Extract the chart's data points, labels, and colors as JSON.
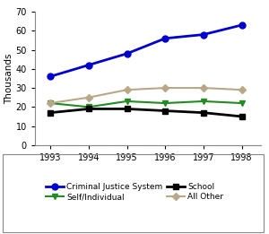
{
  "years": [
    1993,
    1994,
    1995,
    1996,
    1997,
    1998
  ],
  "series_order": [
    "Criminal Justice System",
    "Self/Individual",
    "School",
    "All Other"
  ],
  "series": {
    "Criminal Justice System": {
      "values": [
        36,
        42,
        48,
        56,
        58,
        63
      ],
      "color": "#0000CC",
      "marker": "o",
      "markersize": 5,
      "linewidth": 2
    },
    "Self/Individual": {
      "values": [
        22,
        20,
        23,
        22,
        23,
        22
      ],
      "color": "#228B22",
      "marker": "v",
      "markersize": 5,
      "linewidth": 1.5
    },
    "School": {
      "values": [
        17,
        19,
        19,
        18,
        17,
        15
      ],
      "color": "#000000",
      "marker": "s",
      "markersize": 5,
      "linewidth": 2
    },
    "All Other": {
      "values": [
        22,
        25,
        29,
        30,
        30,
        29
      ],
      "color": "#B8A888",
      "marker": "D",
      "markersize": 4,
      "linewidth": 1.5
    }
  },
  "ylabel": "Thousands",
  "ylim": [
    0,
    70
  ],
  "yticks": [
    0,
    10,
    20,
    30,
    40,
    50,
    60,
    70
  ],
  "xlim": [
    1992.6,
    1998.5
  ],
  "xticks": [
    1993,
    1994,
    1995,
    1996,
    1997,
    1998
  ],
  "background_color": "#ffffff",
  "legend_fontsize": 6.5,
  "axis_fontsize": 7.5,
  "tick_fontsize": 7
}
